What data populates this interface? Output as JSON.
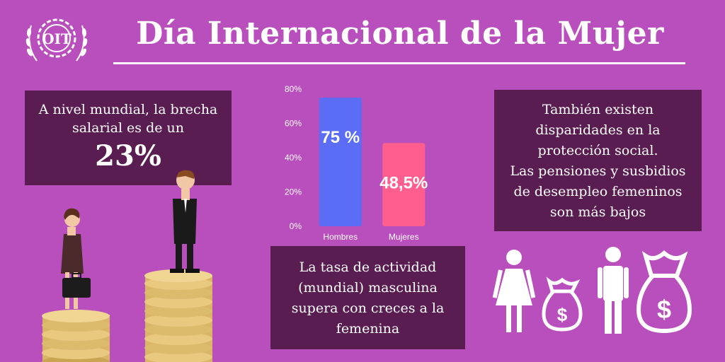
{
  "header": {
    "logo_text": "OIT",
    "title": "Día Internacional de la Mujer"
  },
  "left_box": {
    "text": "A nivel mundial, la brecha salarial es de un",
    "highlight": "23%"
  },
  "right_box": {
    "line1": "También existen",
    "line2": "disparidades en la",
    "line3": "protección social.",
    "line4": "Las pensiones y susbidios",
    "line5": "de desempleo femeninos",
    "line6": "son más bajos"
  },
  "bottom_box": {
    "line1": "La tasa de actividad",
    "line2": "(mundial) masculina",
    "line3": "supera con creces a la",
    "line4": "femenina"
  },
  "chart_data": {
    "type": "bar",
    "categories": [
      "Hombres",
      "Mujeres"
    ],
    "values": [
      75,
      48.5
    ],
    "value_labels": [
      "75 %",
      "48,5%"
    ],
    "ylim": [
      0,
      80
    ],
    "yticks": [
      "0%",
      "20%",
      "40%",
      "60%",
      "80%"
    ],
    "ytick_values": [
      0,
      20,
      40,
      60,
      80
    ],
    "colors": [
      "#5b6cf5",
      "#ff5e8e"
    ],
    "grid": false
  },
  "colors": {
    "background": "#b94ebd",
    "box": "#5a1d51",
    "text": "#ffffff",
    "coin": "#e3c27a"
  },
  "icons": [
    "woman-icon",
    "money-bag-icon",
    "man-icon",
    "money-bag-icon"
  ]
}
